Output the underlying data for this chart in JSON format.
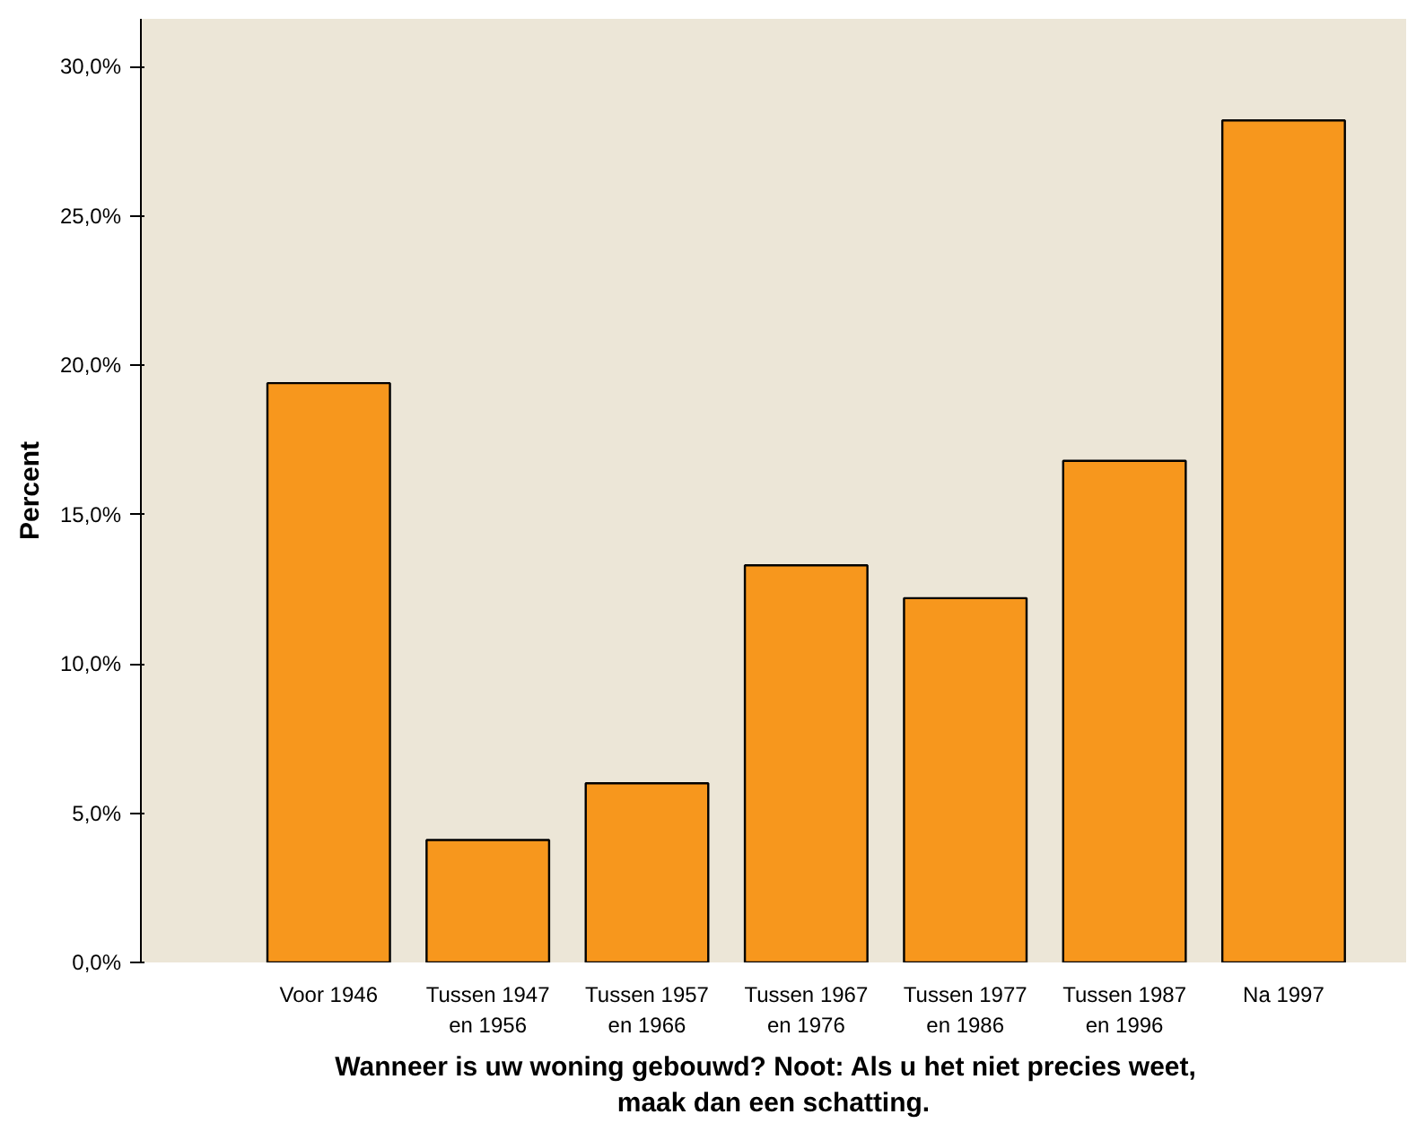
{
  "chart_data": {
    "type": "bar",
    "xlabel": "Wanneer is uw woning gebouwd?   Noot: Als u het niet precies weet,\nmaak dan een schatting.",
    "ylabel": "Percent",
    "categories": [
      "Voor 1946",
      "Tussen 1947\nen 1956",
      "Tussen 1957\nen 1966",
      "Tussen 1967\nen 1976",
      "Tussen 1977\nen 1986",
      "Tussen 1987\nen 1996",
      "Na 1997"
    ],
    "values": [
      19.4,
      4.1,
      6.0,
      13.3,
      12.2,
      16.8,
      28.2
    ],
    "color": "#f7971d",
    "ylim": [
      0,
      31.6
    ],
    "yticks": [
      {
        "value": 0,
        "label": "0,0%"
      },
      {
        "value": 5,
        "label": "5,0%"
      },
      {
        "value": 10,
        "label": "10,0%"
      },
      {
        "value": 15,
        "label": "15,0%"
      },
      {
        "value": 20,
        "label": "20,0%"
      },
      {
        "value": 25,
        "label": "25,0%"
      },
      {
        "value": 30,
        "label": "30,0%"
      }
    ],
    "grid": false
  }
}
